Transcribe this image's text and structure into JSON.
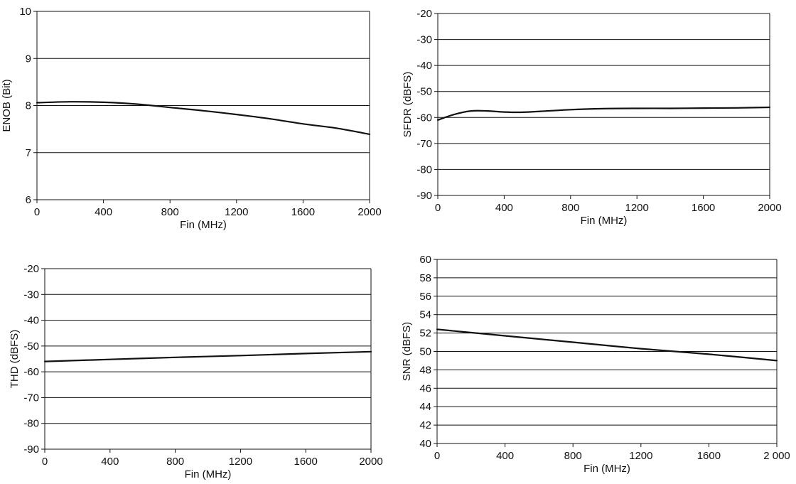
{
  "chart_data": [
    {
      "type": "line",
      "xlabel": "Fin (MHz)",
      "ylabel": "ENOB (Bit)",
      "xlim": [
        0,
        2000
      ],
      "ylim": [
        6,
        10
      ],
      "xticks": [
        "0",
        "400",
        "800",
        "1200",
        "1600",
        "2000"
      ],
      "yticks": [
        "6",
        "7",
        "8",
        "9",
        "10"
      ],
      "grid": "horizontal",
      "line_color": "#111111",
      "series": [
        {
          "x": [
            0,
            200,
            400,
            600,
            800,
            1000,
            1200,
            1400,
            1600,
            1800,
            2000
          ],
          "y": [
            8.06,
            8.08,
            8.07,
            8.03,
            7.96,
            7.89,
            7.81,
            7.72,
            7.61,
            7.52,
            7.39
          ]
        }
      ]
    },
    {
      "type": "line",
      "xlabel": "Fin (MHz)",
      "ylabel": "SFDR (dBFS)",
      "xlim": [
        0,
        2000
      ],
      "ylim": [
        -90,
        -20
      ],
      "xticks": [
        "0",
        "400",
        "800",
        "1200",
        "1600",
        "2000"
      ],
      "yticks": [
        "-90",
        "-80",
        "-70",
        "-60",
        "-50",
        "-40",
        "-30",
        "-20"
      ],
      "grid": "horizontal",
      "line_color": "#111111",
      "series": [
        {
          "x": [
            0,
            100,
            200,
            300,
            400,
            500,
            600,
            800,
            1000,
            1200,
            1400,
            1600,
            1800,
            2000
          ],
          "y": [
            -61.0,
            -58.8,
            -57.5,
            -57.5,
            -57.9,
            -58.0,
            -57.7,
            -57.0,
            -56.6,
            -56.5,
            -56.5,
            -56.4,
            -56.3,
            -56.1
          ]
        }
      ]
    },
    {
      "type": "line",
      "xlabel": "Fin (MHz)",
      "ylabel": "THD (dBFS)",
      "xlim": [
        0,
        2000
      ],
      "ylim": [
        -90,
        -20
      ],
      "xticks": [
        "0",
        "400",
        "800",
        "1200",
        "1600",
        "2000"
      ],
      "yticks": [
        "-90",
        "-80",
        "-70",
        "-60",
        "-50",
        "-40",
        "-30",
        "-20"
      ],
      "grid": "horizontal",
      "line_color": "#111111",
      "series": [
        {
          "x": [
            0,
            400,
            800,
            1200,
            1600,
            2000
          ],
          "y": [
            -56.0,
            -55.2,
            -54.4,
            -53.7,
            -52.9,
            -52.2
          ]
        }
      ]
    },
    {
      "type": "line",
      "xlabel": "Fin (MHz)",
      "ylabel": "SNR (dBFS)",
      "xlim": [
        0,
        2000
      ],
      "ylim": [
        40,
        60
      ],
      "xticks": [
        "0",
        "400",
        "800",
        "1200",
        "1600",
        "2 000"
      ],
      "yticks": [
        "40",
        "42",
        "44",
        "46",
        "48",
        "50",
        "52",
        "54",
        "56",
        "58",
        "60"
      ],
      "grid": "horizontal",
      "line_color": "#111111",
      "series": [
        {
          "x": [
            0,
            400,
            800,
            1200,
            1600,
            2000
          ],
          "y": [
            52.4,
            51.7,
            51.0,
            50.3,
            49.7,
            49.0
          ]
        }
      ]
    }
  ]
}
